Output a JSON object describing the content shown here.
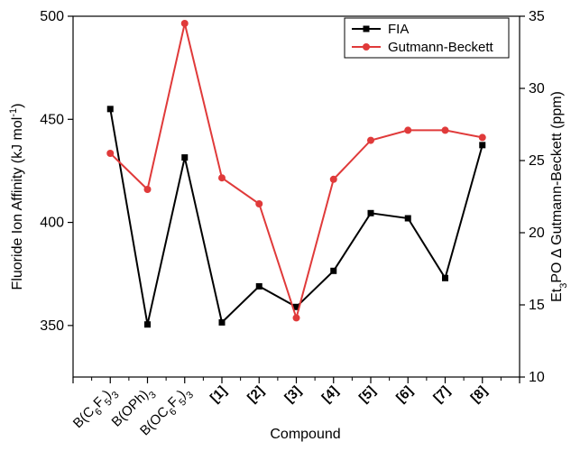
{
  "chart_data": {
    "type": "line",
    "xlabel": "Compound",
    "categories": [
      {
        "main": "B(C",
        "sub": [
          [
            "6",
            "F"
          ],
          [
            "5",
            ")"
          ],
          [
            "3",
            ""
          ]
        ],
        "bold": false
      },
      {
        "main": "B(OPh)",
        "sub": [
          [
            "3",
            ""
          ]
        ],
        "bold": false
      },
      {
        "main": "B(OC",
        "sub": [
          [
            "6",
            "F"
          ],
          [
            "5",
            ")"
          ],
          [
            "3",
            ""
          ]
        ],
        "bold": false
      },
      {
        "main": "[1]",
        "sub": [],
        "bold": true
      },
      {
        "main": "[2]",
        "sub": [],
        "bold": true
      },
      {
        "main": "[3]",
        "sub": [],
        "bold": true
      },
      {
        "main": "[4]",
        "sub": [],
        "bold": true
      },
      {
        "main": "[5]",
        "sub": [],
        "bold": true
      },
      {
        "main": "[6]",
        "sub": [],
        "bold": true
      },
      {
        "main": "[7]",
        "sub": [],
        "bold": true
      },
      {
        "main": "[8]",
        "sub": [],
        "bold": true
      }
    ],
    "y_left": {
      "label_main": "Fluoride Ion Affinity (kJ mol",
      "label_sup": "-1",
      "label_end": ")",
      "range": [
        325,
        500
      ],
      "ticks": [
        "350",
        "400",
        "450",
        "500"
      ],
      "tick_values": [
        350,
        400,
        450,
        500
      ]
    },
    "y_right": {
      "label_a": "Et",
      "label_sub": "3",
      "label_b": "PO Δ Gutmann-Beckett (ppm)",
      "range": [
        10,
        35
      ],
      "ticks": [
        "10",
        "15",
        "20",
        "25",
        "30",
        "35"
      ],
      "tick_values": [
        10,
        15,
        20,
        25,
        30,
        35
      ]
    },
    "series": [
      {
        "name": "FIA",
        "axis": "left",
        "color": "#000000",
        "marker": "square",
        "values": [
          455,
          350.5,
          431.5,
          351.5,
          369,
          359,
          376.5,
          404.5,
          402,
          373,
          437.5
        ]
      },
      {
        "name": "Gutmann-Beckett",
        "axis": "right",
        "color": "#e03a3a",
        "marker": "circle",
        "values": [
          25.5,
          23.0,
          34.5,
          23.8,
          22.0,
          14.1,
          23.7,
          26.4,
          27.1,
          27.1,
          26.6
        ]
      }
    ],
    "legend_position": "top-right",
    "grid": false
  }
}
